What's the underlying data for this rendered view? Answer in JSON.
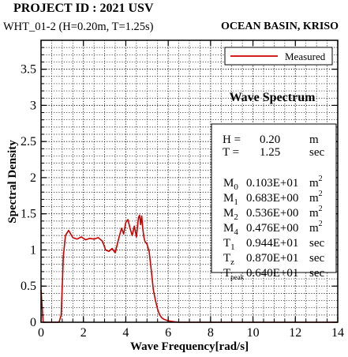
{
  "header": {
    "project": "PROJECT ID : 2021 USV",
    "run": "WHT_01-2 (H=0.20m, T=1.25s)",
    "lab": "OCEAN BASIN, KRISO"
  },
  "colors": {
    "series": "#cc0000",
    "grid": "#000000"
  },
  "chart_data": {
    "type": "line",
    "title": "Wave Spectrum",
    "xlabel": "Wave Frequency[rad/s]",
    "ylabel": "Spectral Density",
    "xlim": [
      0,
      14
    ],
    "ylim": [
      0,
      3.9
    ],
    "xticks": [
      0,
      2,
      4,
      6,
      8,
      10,
      12,
      14
    ],
    "yticks": [
      0,
      0.5,
      1,
      1.5,
      2,
      2.5,
      3,
      3.5
    ],
    "ytick_labels": [
      "0",
      "0.5",
      "1",
      "1.5",
      "2",
      "2.5",
      "3",
      "3.5"
    ],
    "grid": true,
    "legend": {
      "position": "top-right",
      "label": "Measured"
    },
    "series": [
      {
        "name": "Measured",
        "x": [
          0.0,
          0.1,
          0.2,
          0.5,
          0.85,
          0.95,
          1.0,
          1.05,
          1.15,
          1.3,
          1.5,
          1.7,
          1.9,
          2.1,
          2.3,
          2.5,
          2.7,
          2.9,
          3.05,
          3.2,
          3.35,
          3.5,
          3.6,
          3.7,
          3.8,
          3.9,
          4.0,
          4.1,
          4.2,
          4.3,
          4.4,
          4.5,
          4.6,
          4.65,
          4.7,
          4.75,
          4.8,
          4.85,
          4.9,
          5.0,
          5.1,
          5.2,
          5.3,
          5.4,
          5.5,
          5.6,
          5.7,
          5.8,
          5.9,
          6.0,
          6.2,
          6.5,
          7.0,
          8.0,
          10.0,
          12.0,
          14.0
        ],
        "y": [
          0.45,
          0.0,
          0.0,
          0.0,
          0.0,
          0.1,
          0.5,
          0.9,
          1.2,
          1.27,
          1.17,
          1.15,
          1.18,
          1.14,
          1.16,
          1.15,
          1.17,
          1.12,
          1.0,
          0.98,
          1.02,
          0.96,
          1.08,
          1.2,
          1.3,
          1.22,
          1.38,
          1.42,
          1.3,
          1.2,
          1.33,
          1.18,
          1.45,
          1.48,
          1.35,
          1.47,
          1.3,
          1.18,
          1.12,
          1.08,
          0.98,
          0.72,
          0.45,
          0.3,
          0.18,
          0.1,
          0.06,
          0.04,
          0.03,
          0.02,
          0.01,
          0.0,
          0.0,
          0.0,
          0.0,
          0.0,
          0.0
        ]
      }
    ],
    "info_box": {
      "params": [
        {
          "label": "H =",
          "value": "0.20",
          "unit": "m"
        },
        {
          "label": "T =",
          "value": "1.25",
          "unit": "sec"
        }
      ],
      "moments": [
        {
          "label": "M",
          "sub": "0",
          "value": "0.103E+01",
          "unit": "m",
          "sup": "2"
        },
        {
          "label": "M",
          "sub": "1",
          "value": "0.683E+00",
          "unit": "m",
          "sup": "2"
        },
        {
          "label": "M",
          "sub": "2",
          "value": "0.536E+00",
          "unit": "m",
          "sup": "2"
        },
        {
          "label": "M",
          "sub": "4",
          "value": "0.476E+00",
          "unit": "m",
          "sup": "2"
        },
        {
          "label": "T",
          "sub": "1",
          "value": "0.944E+01",
          "unit": "sec",
          "sup": ""
        },
        {
          "label": "T",
          "sub": "z",
          "value": "0.870E+01",
          "unit": "sec",
          "sup": ""
        },
        {
          "label": "T",
          "sub": "peak",
          "value": "0.640E+01",
          "unit": "sec",
          "sup": ""
        }
      ]
    }
  }
}
